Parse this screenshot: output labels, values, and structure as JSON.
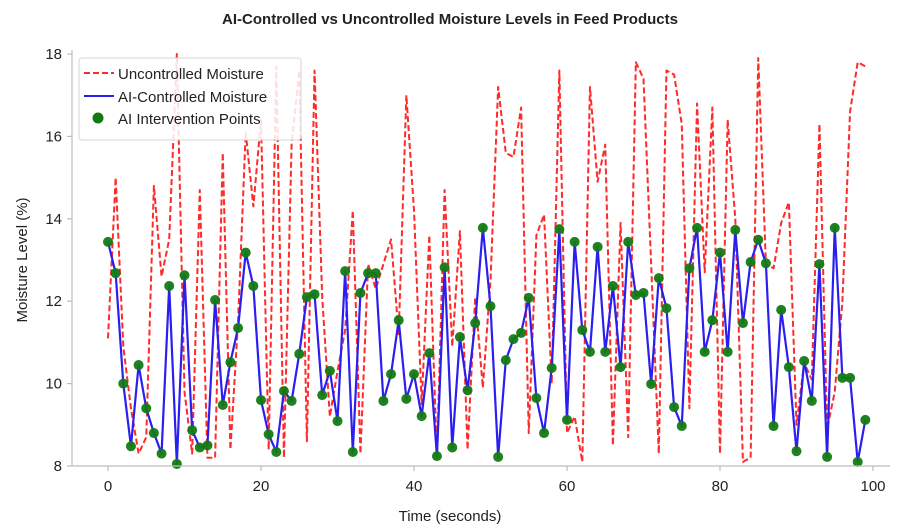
{
  "chart_data": {
    "type": "line",
    "title": "AI-Controlled vs Uncontrolled Moisture Levels in Feed Products",
    "xlabel": "Time (seconds)",
    "ylabel": "Moisture Level (%)",
    "xlim": [
      -5,
      104
    ],
    "ylim": [
      8,
      18
    ],
    "xticks": [
      0,
      20,
      40,
      60,
      80,
      100
    ],
    "yticks": [
      8,
      10,
      12,
      14,
      16,
      18
    ],
    "grid": false,
    "legend_position": "top-left",
    "series": [
      {
        "name": "Uncontrolled Moisture",
        "style": "dashed",
        "color": "#ff2a2a",
        "x": [
          0,
          1,
          2,
          3,
          4,
          5,
          6,
          7,
          8,
          9,
          10,
          11,
          12,
          13,
          14,
          15,
          16,
          17,
          18,
          19,
          20,
          21,
          22,
          23,
          24,
          25,
          26,
          27,
          28,
          29,
          30,
          31,
          32,
          33,
          34,
          35,
          36,
          37,
          38,
          39,
          40,
          41,
          42,
          43,
          44,
          45,
          46,
          47,
          48,
          49,
          50,
          51,
          52,
          53,
          54,
          55,
          56,
          57,
          58,
          59,
          60,
          61,
          62,
          63,
          64,
          65,
          66,
          67,
          68,
          69,
          70,
          71,
          72,
          73,
          74,
          75,
          76,
          77,
          78,
          79,
          80,
          81,
          82,
          83,
          84,
          85,
          86,
          87,
          88,
          89,
          90,
          91,
          92,
          93,
          94,
          95,
          96,
          97,
          98,
          99
        ],
        "values": [
          11.1,
          15.0,
          10.9,
          9.4,
          8.3,
          8.7,
          14.8,
          12.6,
          13.5,
          18.0,
          9.8,
          8.3,
          14.7,
          8.2,
          8.2,
          15.6,
          8.4,
          11.5,
          16.1,
          14.3,
          16.4,
          8.4,
          17.7,
          8.2,
          15.8,
          17.6,
          8.6,
          17.6,
          12.1,
          9.2,
          10.3,
          11.3,
          14.2,
          8.3,
          12.9,
          12.3,
          12.9,
          13.5,
          11.2,
          17.0,
          14.2,
          9.5,
          13.6,
          8.2,
          14.7,
          10.9,
          13.7,
          8.4,
          12.1,
          9.9,
          12.5,
          17.2,
          15.6,
          15.5,
          16.7,
          8.8,
          13.6,
          14.1,
          10.0,
          17.6,
          8.8,
          9.2,
          8.1,
          17.2,
          14.9,
          15.8,
          8.5,
          13.9,
          8.7,
          17.8,
          17.4,
          12.9,
          8.3,
          17.6,
          17.5,
          16.3,
          9.4,
          16.8,
          12.7,
          16.7,
          8.3,
          16.4,
          14.0,
          8.1,
          8.2,
          17.9,
          12.9,
          12.8,
          13.9,
          14.4,
          9.0,
          10.5,
          10.1,
          16.3,
          8.9,
          9.8,
          12.0,
          16.6,
          17.8,
          17.7
        ]
      },
      {
        "name": "AI-Controlled Moisture",
        "style": "solid",
        "color": "#2b1ff0",
        "x": [
          0,
          1,
          2,
          3,
          4,
          5,
          6,
          7,
          8,
          9,
          10,
          11,
          12,
          13,
          14,
          15,
          16,
          17,
          18,
          19,
          20,
          21,
          22,
          23,
          24,
          25,
          26,
          27,
          28,
          29,
          30,
          31,
          32,
          33,
          34,
          35,
          36,
          37,
          38,
          39,
          40,
          41,
          42,
          43,
          44,
          45,
          46,
          47,
          48,
          49,
          50,
          51,
          52,
          53,
          54,
          55,
          56,
          57,
          58,
          59,
          60,
          61,
          62,
          63,
          64,
          65,
          66,
          67,
          68,
          69,
          70,
          71,
          72,
          73,
          74,
          75,
          76,
          77,
          78,
          79,
          80,
          81,
          82,
          83,
          84,
          85,
          86,
          87,
          88,
          89,
          90,
          91,
          92,
          93,
          94,
          95,
          96,
          97,
          98,
          99
        ],
        "values": [
          13.44,
          12.68,
          10.0,
          8.48,
          10.45,
          9.4,
          8.8,
          8.3,
          12.37,
          8.05,
          12.63,
          8.87,
          8.45,
          8.5,
          12.03,
          9.48,
          10.52,
          11.35,
          13.18,
          12.37,
          9.6,
          8.77,
          8.34,
          9.82,
          9.58,
          10.72,
          12.1,
          12.17,
          9.72,
          10.31,
          9.09,
          12.73,
          8.34,
          12.2,
          12.68,
          12.68,
          9.58,
          10.23,
          11.54,
          9.63,
          10.23,
          9.21,
          10.74,
          8.24,
          12.82,
          8.45,
          11.13,
          9.84,
          11.47,
          13.78,
          11.88,
          8.22,
          10.57,
          11.08,
          11.23,
          12.08,
          9.65,
          8.8,
          10.38,
          13.75,
          9.12,
          13.44,
          11.3,
          10.77,
          13.32,
          10.77,
          12.37,
          10.4,
          13.44,
          12.15,
          12.2,
          9.99,
          12.56,
          11.83,
          9.43,
          8.97,
          12.8,
          13.78,
          10.77,
          11.54,
          13.18,
          10.77,
          13.73,
          11.47,
          12.95,
          13.49,
          12.92,
          8.97,
          11.79,
          10.4,
          8.36,
          10.55,
          9.58,
          12.9,
          8.22,
          13.78,
          10.14,
          10.14,
          8.1,
          9.12
        ]
      },
      {
        "name": "AI Intervention Points",
        "style": "markers",
        "color": "#137a13",
        "source": "AI-Controlled Moisture"
      }
    ]
  }
}
